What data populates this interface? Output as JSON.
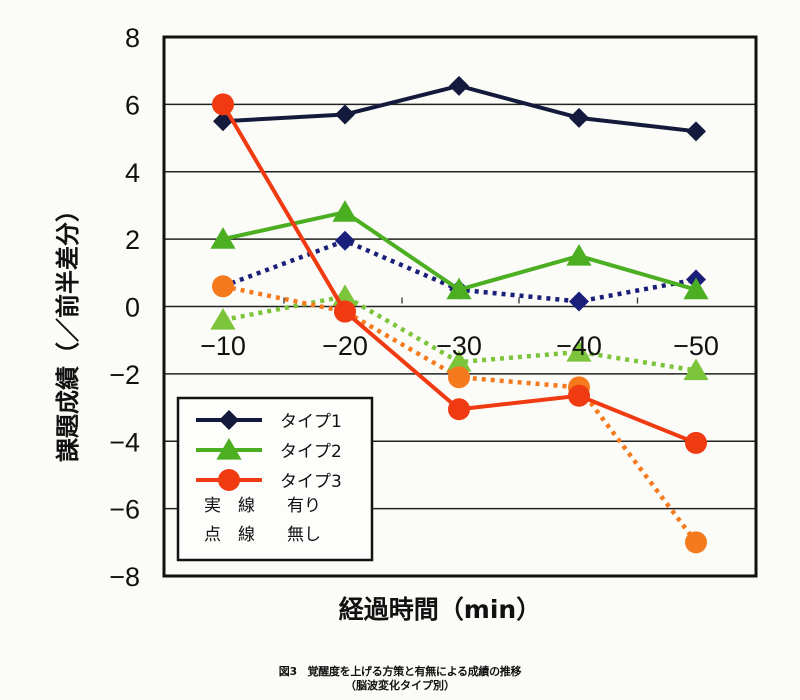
{
  "chart_data": {
    "type": "line",
    "title": "",
    "xlabel": "経過時間（min）",
    "ylabel": "課題成績（／前半差分）",
    "categories": [
      "−10",
      "−20",
      "−30",
      "−40",
      "−50"
    ],
    "x": [
      -10,
      -20,
      -30,
      -40,
      -50
    ],
    "ylim": [
      -8,
      8
    ],
    "yticks": [
      8,
      6,
      4,
      2,
      0,
      -2,
      -4,
      -6,
      -8
    ],
    "ytick_labels": [
      "8",
      "6",
      "4",
      "2",
      "0",
      "−2",
      "−4",
      "−6",
      "−8"
    ],
    "grid": true,
    "legend_position": "bottom-left",
    "series": [
      {
        "name": "タイプ1",
        "line": "solid",
        "marker": "diamond",
        "color": "#141a3c",
        "values": [
          5.5,
          5.7,
          6.55,
          5.6,
          5.2
        ]
      },
      {
        "name": "タイプ2",
        "line": "solid",
        "marker": "triangle",
        "color": "#4caf22",
        "values": [
          2.0,
          2.8,
          0.5,
          1.5,
          0.5
        ]
      },
      {
        "name": "タイプ3",
        "line": "solid",
        "marker": "circle",
        "color": "#f03a12",
        "values": [
          6.0,
          -0.15,
          -3.05,
          -2.65,
          -4.05
        ]
      },
      {
        "name": "タイプ1",
        "line": "dotted",
        "marker": "diamond",
        "color": "#1a1f7a",
        "values": [
          0.6,
          1.95,
          0.5,
          0.15,
          0.8
        ]
      },
      {
        "name": "タイプ2",
        "line": "dotted",
        "marker": "triangle",
        "color": "#7cc43a",
        "values": [
          -0.4,
          0.3,
          -1.65,
          -1.35,
          -1.9
        ]
      },
      {
        "name": "タイプ3",
        "line": "dotted",
        "marker": "circle",
        "color": "#f57a1e",
        "values": [
          0.6,
          -0.15,
          -2.1,
          -2.4,
          -7.0
        ]
      }
    ],
    "legend": {
      "entries": [
        "タイプ1",
        "タイプ2",
        "タイプ3"
      ],
      "line_key": [
        {
          "style": "実　線",
          "meaning": "有り"
        },
        {
          "style": "点　線",
          "meaning": "無し"
        }
      ]
    }
  },
  "caption": {
    "main": "図3　覚醒度を上げる方策と有無による成績の推移",
    "sub": "（脳波変化タイプ別）"
  }
}
